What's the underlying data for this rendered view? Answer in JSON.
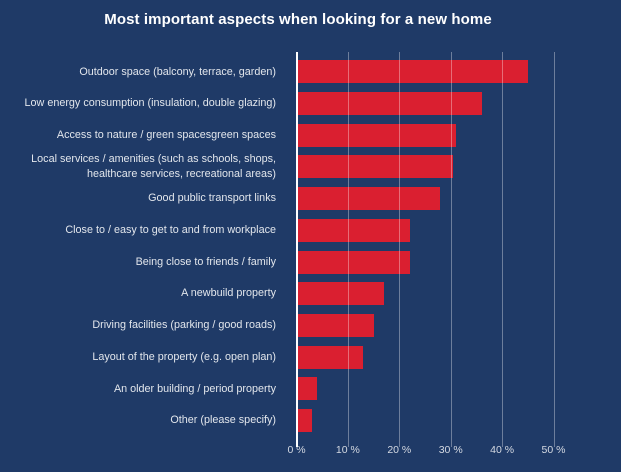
{
  "title": "Most important aspects when looking for a new home",
  "colors": {
    "background": "#1f3a67",
    "bar": "#da1f30",
    "title_text": "#ffffff",
    "label_text": "#e2e6ec",
    "tick_text": "#d4d9e2",
    "gridline": "rgba(255,255,255,0.35)",
    "axis_line": "#ffffff"
  },
  "chart_data": {
    "type": "bar",
    "orientation": "horizontal",
    "title": "Most important aspects when looking for a new home",
    "categories": [
      "Outdoor space (balcony, terrace, garden)",
      "Low energy consumption (insulation, double glazing)",
      "Access to nature / green spacesgreen spaces",
      "Local services / amenities (such as schools, shops, healthcare services, recreational areas)",
      "Good public transport links",
      "Close to / easy to get to and from workplace",
      "Being close to friends / family",
      "A newbuild property",
      "Driving facilities (parking / good roads)",
      "Layout of the property (e.g. open plan)",
      "An older building / period property",
      "Other (please specify)"
    ],
    "values": [
      45,
      36,
      31,
      30.5,
      28,
      22,
      22,
      17,
      15,
      13,
      4,
      3
    ],
    "value_unit": "%",
    "x_ticks": [
      "0 %",
      "10 %",
      "20 %",
      "30 %",
      "40 %",
      "50 %"
    ],
    "x_tick_values": [
      0,
      10,
      20,
      30,
      40,
      50
    ],
    "xlim": [
      0,
      50
    ],
    "grid": true,
    "legend": false
  }
}
